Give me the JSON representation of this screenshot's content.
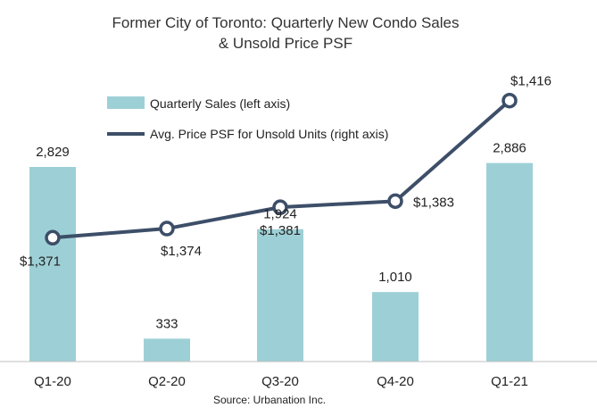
{
  "chart_data": {
    "type": "bar",
    "title": "Former City of Toronto: Quarterly New Condo Sales",
    "subtitle": "& Unsold Price PSF",
    "categories": [
      "Q1-20",
      "Q2-20",
      "Q3-20",
      "Q4-20",
      "Q1-21"
    ],
    "series": [
      {
        "name": "Quarterly Sales (left axis)",
        "type": "bar",
        "axis": "left",
        "values": [
          2829,
          333,
          1924,
          1010,
          2886
        ],
        "labels": [
          "2,829",
          "333",
          "1,924",
          "1,010",
          "2,886"
        ],
        "color": "#9dd0d6"
      },
      {
        "name": "Avg. Price PSF for Unsold Units (right axis)",
        "type": "line",
        "axis": "right",
        "values": [
          1371,
          1374,
          1381,
          1383,
          1416
        ],
        "labels": [
          "$1,371",
          "$1,374",
          "$1,381",
          "$1,383",
          "$1,416"
        ],
        "color": "#3d4e68"
      }
    ],
    "ylim_left": [
      0,
      3400
    ],
    "ylim_right": [
      1345,
      1425
    ],
    "legend": "top-left",
    "grid": false,
    "source": "Source: Urbanation Inc."
  }
}
